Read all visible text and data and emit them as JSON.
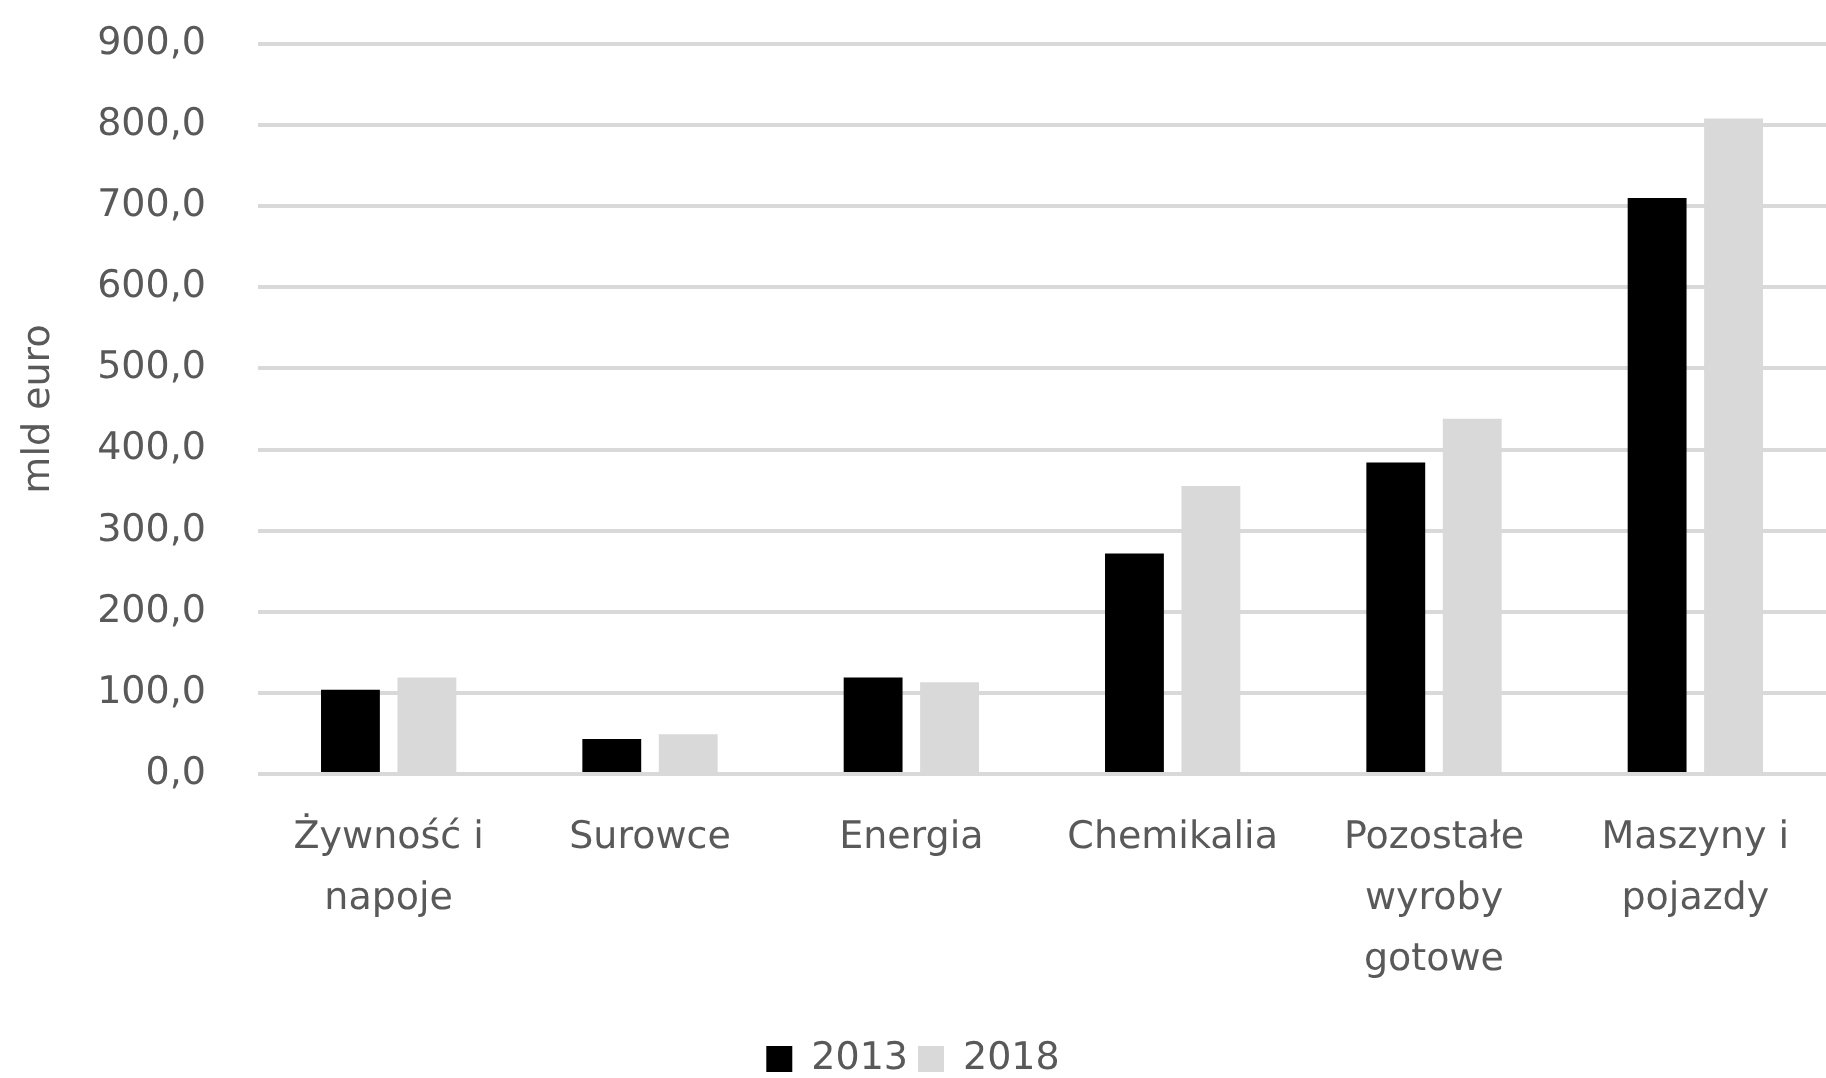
{
  "chart_data": {
    "type": "bar",
    "ylabel": "mld euro",
    "categories": [
      "Żywność i napoje",
      "Surowce",
      "Energia",
      "Chemikalia",
      "Pozostałe wyroby gotowe",
      "Maszyny i pojazdy"
    ],
    "series": [
      {
        "name": "2013",
        "color": "#000000",
        "values": [
          104,
          43,
          119,
          272,
          384,
          710
        ]
      },
      {
        "name": "2018",
        "color": "#d9d9d9",
        "values": [
          119,
          49,
          113,
          355,
          438,
          808
        ]
      }
    ],
    "ylim": [
      0,
      900
    ],
    "yticks": [
      {
        "value": 0,
        "label": "0,0"
      },
      {
        "value": 100,
        "label": "100,0"
      },
      {
        "value": 200,
        "label": "200,0"
      },
      {
        "value": 300,
        "label": "300,0"
      },
      {
        "value": 400,
        "label": "400,0"
      },
      {
        "value": 500,
        "label": "500,0"
      },
      {
        "value": 600,
        "label": "600,0"
      },
      {
        "value": 700,
        "label": "700,0"
      },
      {
        "value": 800,
        "label": "800,0"
      },
      {
        "value": 900,
        "label": "900,0"
      }
    ],
    "grid": "y",
    "legend": "bottom"
  }
}
